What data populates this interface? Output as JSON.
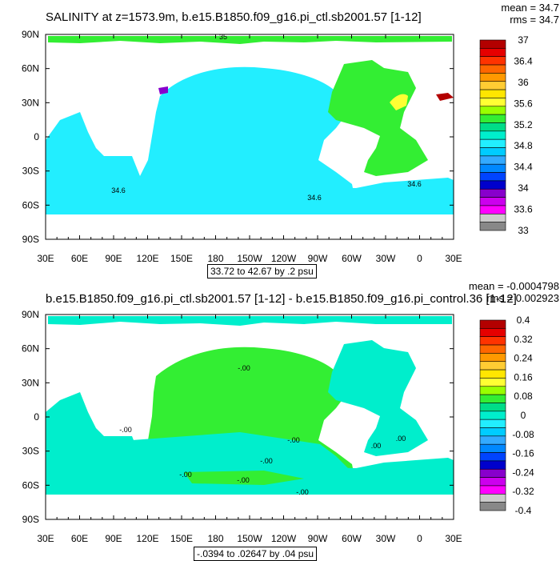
{
  "chart_data": [
    {
      "type": "heatmap",
      "title": "SALINITY at z=1573.9m, b.e15.B1850.f09_g16.pi_ctl.sb2001.57 [1-12]",
      "stats": [
        "mean = 34.7",
        "rms = 34.7"
      ],
      "subtitle": "33.72 to 42.67 by .2 psu",
      "x_ticks": [
        "30E",
        "60E",
        "90E",
        "120E",
        "150E",
        "180",
        "150W",
        "120W",
        "90W",
        "60W",
        "30W",
        "0",
        "30E"
      ],
      "y_ticks": [
        "90N",
        "60N",
        "30N",
        "0",
        "30S",
        "60S",
        "90S"
      ],
      "colorbar": {
        "labels": [
          "37",
          "36.4",
          "36",
          "35.6",
          "35.2",
          "34.8",
          "34.4",
          "34",
          "33.6",
          "33"
        ],
        "colors": [
          "#b30000",
          "#e60000",
          "#ff3300",
          "#ff6600",
          "#ff9900",
          "#ffcc33",
          "#ffe600",
          "#ffff33",
          "#99ff00",
          "#33ee33",
          "#00dd88",
          "#00eecc",
          "#22eeff",
          "#00ccff",
          "#33aaff",
          "#0088ff",
          "#0044ff",
          "#0000cc",
          "#8800cc",
          "#cc00ee",
          "#ff00ff",
          "#cccccc",
          "#888888"
        ]
      },
      "contour_labels": [
        "35",
        "34.6",
        "34.6",
        "34.6"
      ]
    },
    {
      "type": "heatmap",
      "title": "b.e15.B1850.f09_g16.pi_ctl.sb2001.57 [1-12] - b.e15.B1850.f09_g16.pi_control.36 [1-12]",
      "stats": [
        "mean = -0.0004798",
        "rms = 0.002923"
      ],
      "subtitle": "-.0394 to .02647 by .04 psu",
      "x_ticks": [
        "30E",
        "60E",
        "90E",
        "120E",
        "150E",
        "180",
        "150W",
        "120W",
        "90W",
        "60W",
        "30W",
        "0",
        "30E"
      ],
      "y_ticks": [
        "90N",
        "60N",
        "30N",
        "0",
        "30S",
        "60S",
        "90S"
      ],
      "colorbar": {
        "labels": [
          "0.4",
          "0.32",
          "0.24",
          "0.16",
          "0.08",
          "0",
          "-0.08",
          "-0.16",
          "-0.24",
          "-0.32",
          "-0.4"
        ],
        "colors": [
          "#b30000",
          "#e60000",
          "#ff3300",
          "#ff6600",
          "#ff9900",
          "#ffcc33",
          "#ffe600",
          "#ffff33",
          "#99ff00",
          "#33ee33",
          "#00dd88",
          "#00eecc",
          "#22eeff",
          "#00ccff",
          "#33aaff",
          "#0088ff",
          "#0044ff",
          "#0000cc",
          "#8800cc",
          "#cc00ee",
          "#ff00ff",
          "#cccccc",
          "#888888"
        ]
      },
      "contour_labels": [
        "-.00",
        "-.00",
        "-.00",
        ".00",
        "-.00",
        "-.00",
        "-.00",
        "-.00",
        ".00"
      ]
    }
  ]
}
